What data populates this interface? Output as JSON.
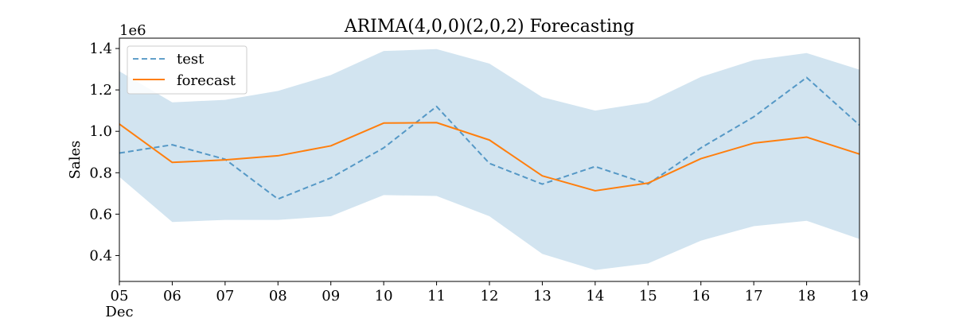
{
  "chart_data": {
    "type": "line",
    "title": "ARIMA(4,0,0)(2,0,2) Forecasting",
    "ylabel": "Sales",
    "y_offset_label": "1e6",
    "x_month_label": "Dec",
    "x_ticks": [
      "05",
      "06",
      "07",
      "08",
      "09",
      "10",
      "11",
      "12",
      "13",
      "14",
      "15",
      "16",
      "17",
      "18",
      "19"
    ],
    "y_ticks": [
      0.4,
      0.6,
      0.8,
      1.0,
      1.2,
      1.4
    ],
    "y_tick_labels": [
      "0.4",
      "0.6",
      "0.8",
      "1.0",
      "1.2",
      "1.4"
    ],
    "ylim": [
      0.275,
      1.45
    ],
    "grid": false,
    "legend_position": "top-left",
    "series": [
      {
        "name": "test",
        "style": "dashed",
        "color": "#1f77b4",
        "values": [
          0.895,
          0.935,
          0.865,
          0.673,
          0.775,
          0.92,
          1.12,
          0.845,
          0.745,
          0.83,
          0.745,
          0.92,
          1.07,
          1.26,
          1.03
        ]
      },
      {
        "name": "forecast",
        "style": "solid",
        "color": "#ff7f0e",
        "values": [
          1.035,
          0.85,
          0.862,
          0.882,
          0.93,
          1.04,
          1.042,
          0.958,
          0.785,
          0.713,
          0.75,
          0.868,
          0.943,
          0.972,
          0.89
        ]
      }
    ],
    "confidence_band": {
      "color": "#1f77b4",
      "lower": [
        0.78,
        0.562,
        0.572,
        0.572,
        0.59,
        0.692,
        0.688,
        0.59,
        0.408,
        0.33,
        0.362,
        0.472,
        0.542,
        0.568,
        0.48
      ],
      "upper": [
        1.29,
        1.14,
        1.152,
        1.195,
        1.272,
        1.388,
        1.397,
        1.327,
        1.165,
        1.1,
        1.14,
        1.263,
        1.344,
        1.378,
        1.298
      ]
    }
  }
}
